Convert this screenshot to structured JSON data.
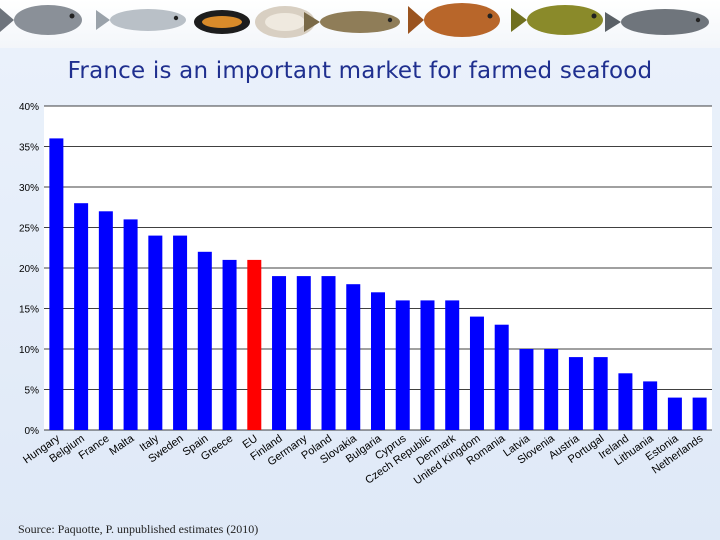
{
  "page": {
    "title": "France is an important market for farmed seafood",
    "source": "Source: Paquotte, P. unpublished estimates (2010)"
  },
  "banner": {
    "icons": [
      "sea-bream-icon",
      "sea-bass-icon",
      "mussel-icon",
      "oyster-icon",
      "trout-icon",
      "carp-icon",
      "tench-icon",
      "catfish-icon"
    ]
  },
  "colors": {
    "bar": "#0000ff",
    "highlight": "#ff0000"
  },
  "chart_data": {
    "type": "bar",
    "categories": [
      "Hungary",
      "Belgium",
      "France",
      "Malta",
      "Italy",
      "Sweden",
      "Spain",
      "Greece",
      "EU",
      "Finland",
      "Germany",
      "Poland",
      "Slovakia",
      "Bulgaria",
      "Cyprus",
      "Czech Republic",
      "Denmark",
      "United Kingdom",
      "Romania",
      "Latvia",
      "Slovenia",
      "Austria",
      "Portugal",
      "Ireland",
      "Lithuania",
      "Estonia",
      "Netherlands"
    ],
    "values": [
      36,
      28,
      27,
      26,
      24,
      24,
      22,
      21,
      21,
      19,
      19,
      19,
      18,
      17,
      16,
      16,
      16,
      14,
      13,
      10,
      10,
      9,
      9,
      7,
      6,
      4,
      4
    ],
    "highlight_category": "EU",
    "yticks": [
      "0%",
      "5%",
      "10%",
      "15%",
      "20%",
      "25%",
      "30%",
      "35%",
      "40%"
    ],
    "ylim": [
      0,
      40
    ],
    "grid": true
  }
}
